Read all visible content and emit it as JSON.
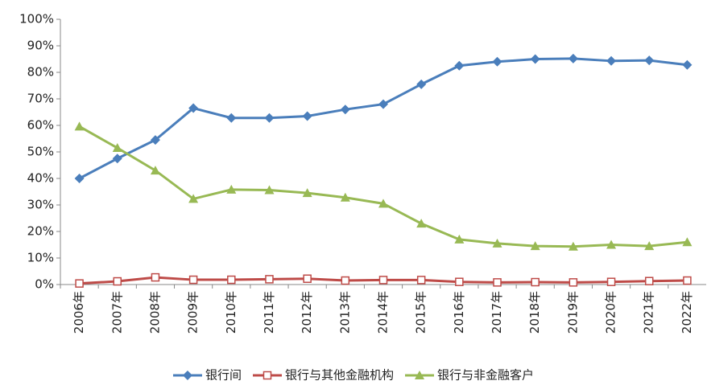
{
  "chart_data": {
    "type": "line",
    "categories": [
      "2006年",
      "2007年",
      "2008年",
      "2009年",
      "2010年",
      "2011年",
      "2012年",
      "2013年",
      "2014年",
      "2015年",
      "2016年",
      "2017年",
      "2018年",
      "2019年",
      "2020年",
      "2021年",
      "2022年"
    ],
    "series": [
      {
        "name": "银行间",
        "color": "#4a7ebb",
        "marker": "diamond",
        "values": [
          40,
          47.5,
          54.5,
          66.5,
          62.8,
          62.8,
          63.5,
          66,
          68,
          75.5,
          82.5,
          84,
          85,
          85.2,
          84.3,
          84.5,
          82.8
        ]
      },
      {
        "name": "银行与其他金融机构",
        "color": "#be4b48",
        "marker": "open-square",
        "values": [
          0.4,
          1.2,
          2.7,
          1.8,
          1.8,
          2,
          2.2,
          1.5,
          1.7,
          1.7,
          1,
          0.8,
          0.9,
          0.8,
          1,
          1.3,
          1.5
        ]
      },
      {
        "name": "银行与非金融客户",
        "color": "#98b954",
        "marker": "triangle",
        "values": [
          59.6,
          51.5,
          43,
          32.3,
          35.8,
          35.6,
          34.5,
          32.8,
          30.5,
          23,
          17,
          15.5,
          14.5,
          14.3,
          15,
          14.5,
          16
        ]
      }
    ],
    "ylim": [
      0,
      100
    ],
    "yticks": [
      {
        "value": 0,
        "label": "0%"
      },
      {
        "value": 10,
        "label": "10%"
      },
      {
        "value": 20,
        "label": "20%"
      },
      {
        "value": 30,
        "label": "30%"
      },
      {
        "value": 40,
        "label": "40%"
      },
      {
        "value": 50,
        "label": "50%"
      },
      {
        "value": 60,
        "label": "60%"
      },
      {
        "value": 70,
        "label": "70%"
      },
      {
        "value": 80,
        "label": "80%"
      },
      {
        "value": 90,
        "label": "90%"
      },
      {
        "value": 100,
        "label": "100%"
      }
    ],
    "grid": false,
    "legend": "bottom"
  }
}
